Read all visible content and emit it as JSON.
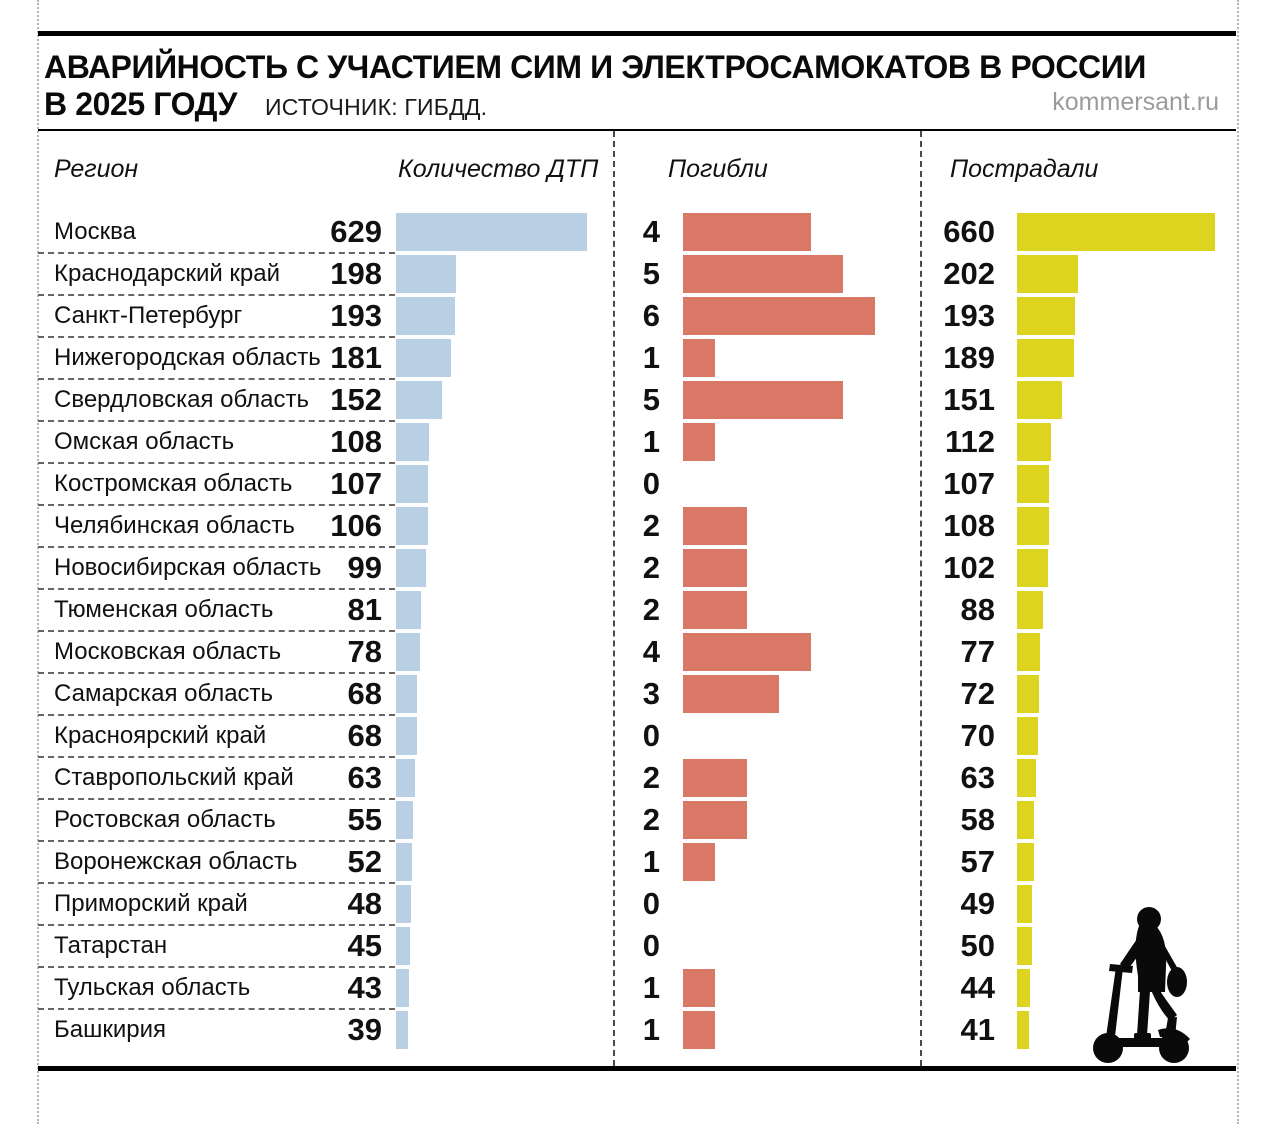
{
  "header": {
    "title_line1": "АВАРИЙНОСТЬ С УЧАСТИЕМ СИМ И ЭЛЕКТРОСАМОКАТОВ В РОССИИ",
    "title_line2": "В 2025 ГОДУ",
    "source": "ИСТОЧНИК: ГИБДД.",
    "watermark": "kommersant.ru"
  },
  "columns": {
    "region": "Регион",
    "accidents": "Количество ДТП",
    "died": "Погибли",
    "injured": "Пострадали"
  },
  "colors": {
    "accidents_bar": "#b9cfe4",
    "died_bar": "#da7868",
    "injured_bar": "#ddd41f",
    "rule": "#000000",
    "row_separator": "#666666",
    "watermark_text": "#9b9b9b",
    "text": "#111111"
  },
  "chart_data": {
    "type": "bar",
    "orientation": "horizontal",
    "title": "Аварийность с участием СИМ и электросамокатов в России в 2025 году",
    "source": "ИСТОЧНИК: ГИБДД.",
    "legend_position": "column-headers",
    "grid": false,
    "categories": [
      "Москва",
      "Краснодарский край",
      "Санкт-Петербург",
      "Нижегородская область",
      "Свердловская область",
      "Омская область",
      "Костромская область",
      "Челябинская область",
      "Новосибирская область",
      "Тюменская область",
      "Московская область",
      "Самарская область",
      "Красноярский край",
      "Ставропольский край",
      "Ростовская область",
      "Воронежская область",
      "Приморский край",
      "Татарстан",
      "Тульская область",
      "Башкирия"
    ],
    "series": [
      {
        "name": "Количество ДТП",
        "color": "#b9cfe4",
        "values": [
          629,
          198,
          193,
          181,
          152,
          108,
          107,
          106,
          99,
          81,
          78,
          68,
          68,
          63,
          55,
          52,
          48,
          45,
          43,
          39
        ]
      },
      {
        "name": "Погибли",
        "color": "#da7868",
        "values": [
          4,
          5,
          6,
          1,
          5,
          1,
          0,
          2,
          2,
          2,
          4,
          3,
          0,
          2,
          2,
          1,
          0,
          0,
          1,
          1
        ]
      },
      {
        "name": "Пострадали",
        "color": "#ddd41f",
        "values": [
          660,
          202,
          193,
          189,
          151,
          112,
          107,
          108,
          102,
          88,
          77,
          72,
          70,
          63,
          58,
          57,
          49,
          50,
          44,
          41
        ]
      }
    ]
  }
}
